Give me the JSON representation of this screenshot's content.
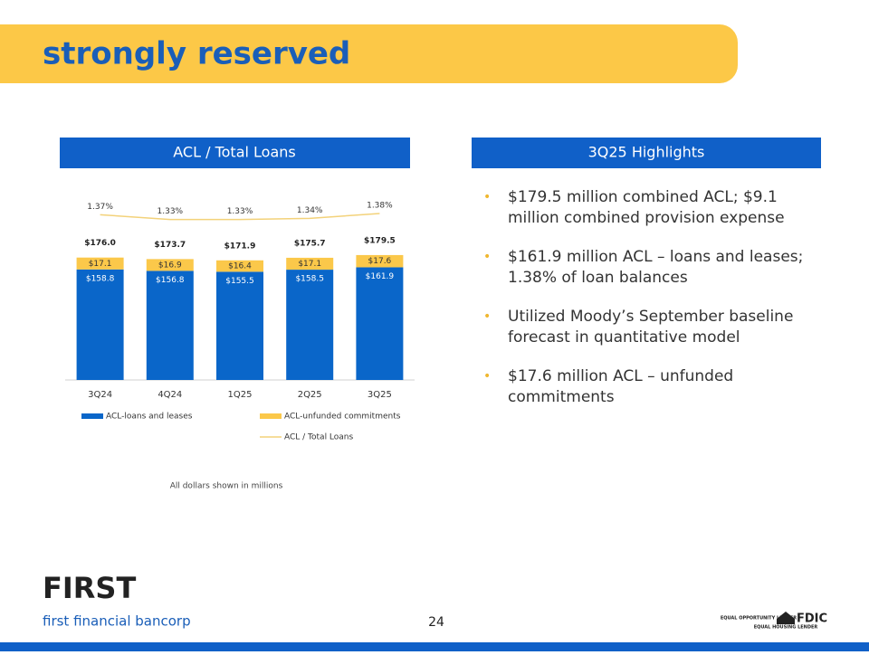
{
  "header": {
    "title": "strongly reserved"
  },
  "left_panel": {
    "heading": "ACL / Total Loans",
    "note": "All dollars shown in millions"
  },
  "right_panel": {
    "heading": "3Q25 Highlights",
    "bullets": [
      [
        "$179.5 million combined ACL; $9.1",
        "million combined provision expense"
      ],
      [
        "$161.9 million ACL – loans and leases;",
        "1.38% of loan balances"
      ],
      [
        "Utilized Moody’s September baseline",
        "forecast in quantitative model"
      ],
      [
        "$17.6 million ACL – unfunded",
        "commitments"
      ]
    ]
  },
  "footer": {
    "logo": "FIRST",
    "company": "first financial bancorp",
    "page": "24",
    "badges": [
      "EQUAL OPPORTUNITY LENDER",
      "EQUAL HOUSING LENDER",
      "FDIC"
    ]
  },
  "chart_data": {
    "type": "bar",
    "stacked": true,
    "categories": [
      "3Q24",
      "4Q24",
      "1Q25",
      "2Q25",
      "3Q25"
    ],
    "ylim": [
      0,
      260
    ],
    "y2lim": [
      0,
      1.5
    ],
    "total_labels": [
      "$176.0",
      "$173.7",
      "$171.9",
      "$175.7",
      "$179.5"
    ],
    "series": [
      {
        "name": "ACL-loans and leases",
        "type": "bar",
        "color": "#0a66c9",
        "values": [
          158.8,
          156.8,
          155.5,
          158.5,
          161.9
        ],
        "value_labels": [
          "$158.8",
          "$156.8",
          "$155.5",
          "$158.5",
          "$161.9"
        ]
      },
      {
        "name": "ACL-unfunded commitments",
        "type": "bar",
        "color": "#fbc84a",
        "values": [
          17.1,
          16.9,
          16.4,
          17.1,
          17.6
        ],
        "value_labels": [
          "$17.1",
          "$16.9",
          "$16.4",
          "$17.1",
          "$17.6"
        ]
      },
      {
        "name": "ACL / Total Loans",
        "type": "line",
        "axis": "y2",
        "color": "#f3d27a",
        "values": [
          1.37,
          1.33,
          1.33,
          1.34,
          1.38
        ],
        "value_labels": [
          "1.37%",
          "1.33%",
          "1.33%",
          "1.34%",
          "1.38%"
        ]
      }
    ]
  }
}
